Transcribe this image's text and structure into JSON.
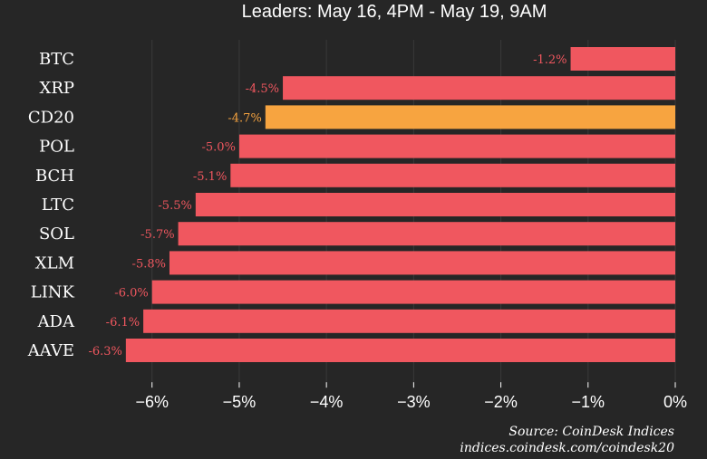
{
  "header": {
    "title": "Leaders: May 16, 4PM - May 19, 9AM"
  },
  "footer": {
    "source": "Source: CoinDesk Indices",
    "url": "indices.coindesk.com/coindesk20"
  },
  "colors": {
    "background": "#262626",
    "bar_default": "#f0575f",
    "bar_highlight": "#f7a440",
    "label_default": "#f0575f",
    "label_highlight": "#f7a440",
    "grid": "#3a3a3a"
  },
  "chart_data": {
    "type": "bar",
    "orientation": "horizontal",
    "categories": [
      "BTC",
      "XRP",
      "CD20",
      "POL",
      "BCH",
      "LTC",
      "SOL",
      "XLM",
      "LINK",
      "ADA",
      "AAVE"
    ],
    "values": [
      -1.2,
      -4.5,
      -4.7,
      -5.0,
      -5.1,
      -5.5,
      -5.7,
      -5.8,
      -6.0,
      -6.1,
      -6.3
    ],
    "data_labels": [
      "-1.2%",
      "-4.5%",
      "-4.7%",
      "-5.0%",
      "-5.1%",
      "-5.5%",
      "-5.7%",
      "-5.8%",
      "-6.0%",
      "-6.1%",
      "-6.3%"
    ],
    "highlight": "CD20",
    "xlim": [
      -6.6,
      0
    ],
    "xticks": [
      -6,
      -5,
      -4,
      -3,
      -2,
      -1,
      0
    ],
    "xtick_labels": [
      "−6%",
      "−5%",
      "−4%",
      "−3%",
      "−2%",
      "−1%",
      "0%"
    ],
    "grid": true
  }
}
